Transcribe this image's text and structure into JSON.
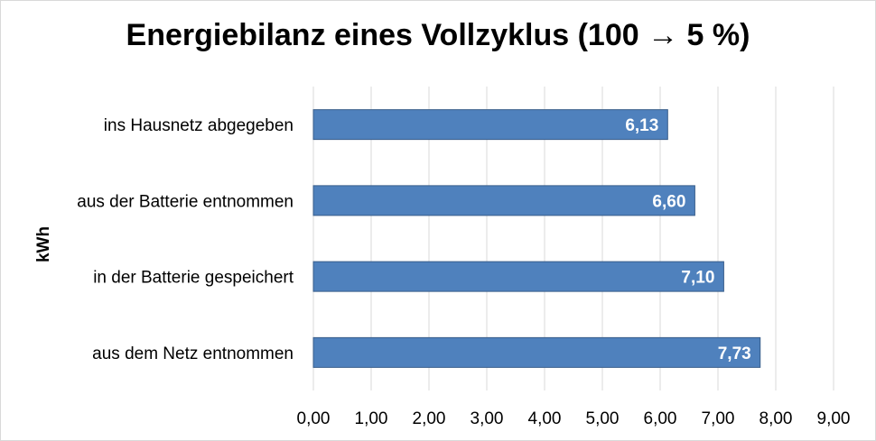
{
  "chart_data": {
    "type": "bar",
    "orientation": "horizontal",
    "title": "Energiebilanz eines Vollzyklus (100 → 5 %)",
    "ylabel": "kWh",
    "categories": [
      "ins Hausnetz abgegeben",
      "aus der Batterie entnommen",
      "in der Batterie gespeichert",
      "aus dem Netz entnommen"
    ],
    "values": [
      6.13,
      6.6,
      7.1,
      7.73
    ],
    "value_labels": [
      "6,13",
      "6,60",
      "7,10",
      "7,73"
    ],
    "xlim": [
      0,
      9
    ],
    "xticks": [
      "0,00",
      "1,00",
      "2,00",
      "3,00",
      "4,00",
      "5,00",
      "6,00",
      "7,00",
      "8,00",
      "9,00"
    ],
    "grid": true,
    "legend": "none",
    "colors": {
      "bar": "#4f81bd",
      "bar_border": "#385d8a",
      "grid": "#d9d9d9"
    }
  }
}
